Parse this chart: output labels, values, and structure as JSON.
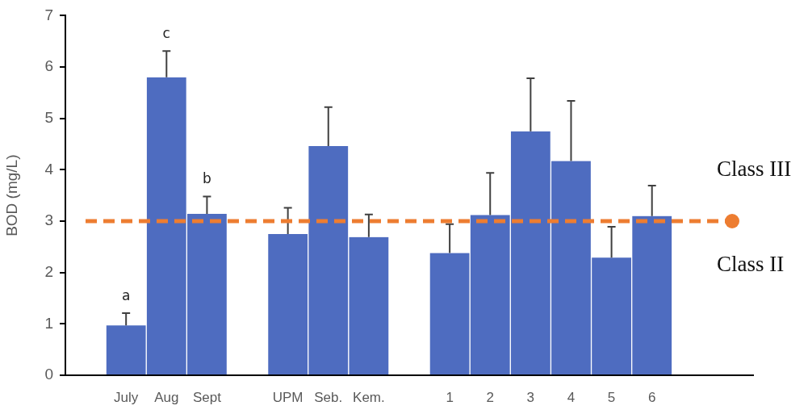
{
  "chart_data": {
    "type": "bar",
    "ylabel": "BOD (mg/L)",
    "categories": [
      null,
      "July",
      "Aug",
      "Sept",
      null,
      "UPM",
      "Seb.",
      "Kem.",
      null,
      "1",
      "2",
      "3",
      "4",
      "5",
      "6",
      null,
      null
    ],
    "series": [
      {
        "color": "#4e6cc0",
        "values": [
          null,
          0.97,
          5.8,
          3.14,
          null,
          2.75,
          4.46,
          2.69,
          null,
          2.38,
          3.12,
          4.75,
          4.17,
          2.29,
          3.1,
          null,
          null
        ],
        "value_labels": [
          null,
          "a",
          "c",
          "b",
          null,
          null,
          null,
          null,
          null,
          null,
          null,
          null,
          null,
          null,
          null,
          null,
          null
        ],
        "errors": [
          null,
          [
            0.97,
            1.21
          ],
          [
            5.8,
            6.31
          ],
          [
            3.14,
            3.48
          ],
          null,
          [
            2.75,
            3.26
          ],
          [
            4.46,
            5.22
          ],
          [
            2.69,
            3.13
          ],
          null,
          [
            2.38,
            2.94
          ],
          [
            3.12,
            3.94
          ],
          [
            4.75,
            5.78
          ],
          [
            4.17,
            5.34
          ],
          [
            2.29,
            2.89
          ],
          [
            3.1,
            3.69
          ],
          null,
          null
        ]
      }
    ],
    "ylim": [
      0,
      7
    ],
    "yticks": [
      0,
      1,
      2,
      3,
      4,
      5,
      6,
      7
    ],
    "grid": false,
    "legend": false,
    "ref_lines": [
      {
        "axis": "y",
        "value": 3,
        "color": "#ed7d31",
        "line_style": "dashed"
      }
    ],
    "annotations": [
      "Class III",
      "Class II"
    ]
  }
}
